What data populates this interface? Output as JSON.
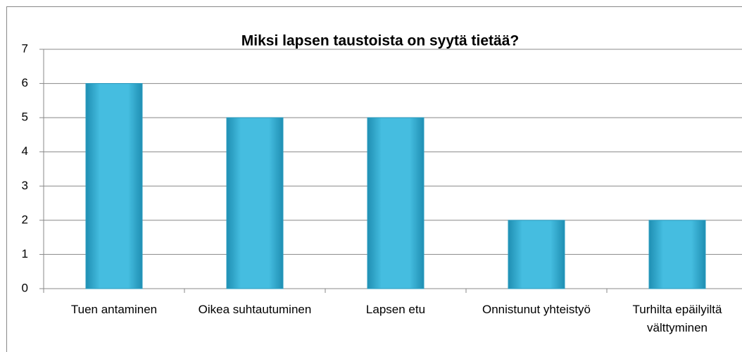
{
  "chart_data": {
    "type": "bar",
    "title": "Miksi lapsen taustoista on syytä tietää?",
    "categories": [
      "Tuen antaminen",
      "Oikea suhtautuminen",
      "Lapsen etu",
      "Onnistunut yhteistyö",
      "Turhilta epäilyiltä välttyminen"
    ],
    "values": [
      6,
      5,
      5,
      2,
      2
    ],
    "color": "#3fb5d8",
    "ylim": [
      0,
      7
    ],
    "yticks": [
      0,
      1,
      2,
      3,
      4,
      5,
      6,
      7
    ],
    "grid": true
  }
}
